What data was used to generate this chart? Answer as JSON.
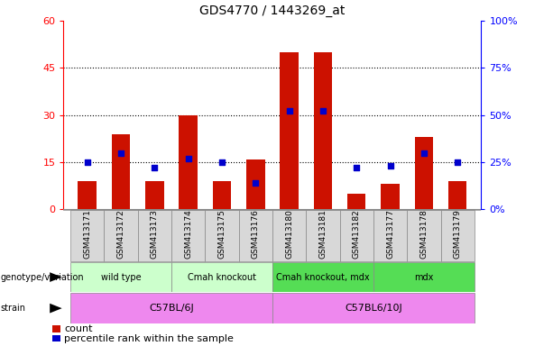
{
  "title": "GDS4770 / 1443269_at",
  "samples": [
    "GSM413171",
    "GSM413172",
    "GSM413173",
    "GSM413174",
    "GSM413175",
    "GSM413176",
    "GSM413180",
    "GSM413181",
    "GSM413182",
    "GSM413177",
    "GSM413178",
    "GSM413179"
  ],
  "counts": [
    9,
    24,
    9,
    30,
    9,
    16,
    50,
    50,
    5,
    8,
    23,
    9
  ],
  "percentiles": [
    25,
    30,
    22,
    27,
    25,
    14,
    52,
    52,
    22,
    23,
    30,
    25
  ],
  "ylim_left": [
    0,
    60
  ],
  "ylim_right": [
    0,
    100
  ],
  "yticks_left": [
    0,
    15,
    30,
    45,
    60
  ],
  "yticks_right": [
    0,
    25,
    50,
    75,
    100
  ],
  "ytick_labels_right": [
    "0%",
    "25%",
    "50%",
    "75%",
    "100%"
  ],
  "bar_color": "#cc1100",
  "dot_color": "#0000cc",
  "label_bg": "#d8d8d8",
  "label_border": "#888888",
  "geno_groups": [
    {
      "label": "wild type",
      "start": 0,
      "end": 2,
      "color": "#ccffcc"
    },
    {
      "label": "Cmah knockout",
      "start": 3,
      "end": 5,
      "color": "#ccffcc"
    },
    {
      "label": "Cmah knockout, mdx",
      "start": 6,
      "end": 8,
      "color": "#55dd55"
    },
    {
      "label": "mdx",
      "start": 9,
      "end": 11,
      "color": "#55dd55"
    }
  ],
  "strain_groups": [
    {
      "label": "C57BL/6J",
      "start": 0,
      "end": 5,
      "color": "#ee88ee"
    },
    {
      "label": "C57BL6/10J",
      "start": 6,
      "end": 11,
      "color": "#ee88ee"
    }
  ],
  "bar_width": 0.55
}
